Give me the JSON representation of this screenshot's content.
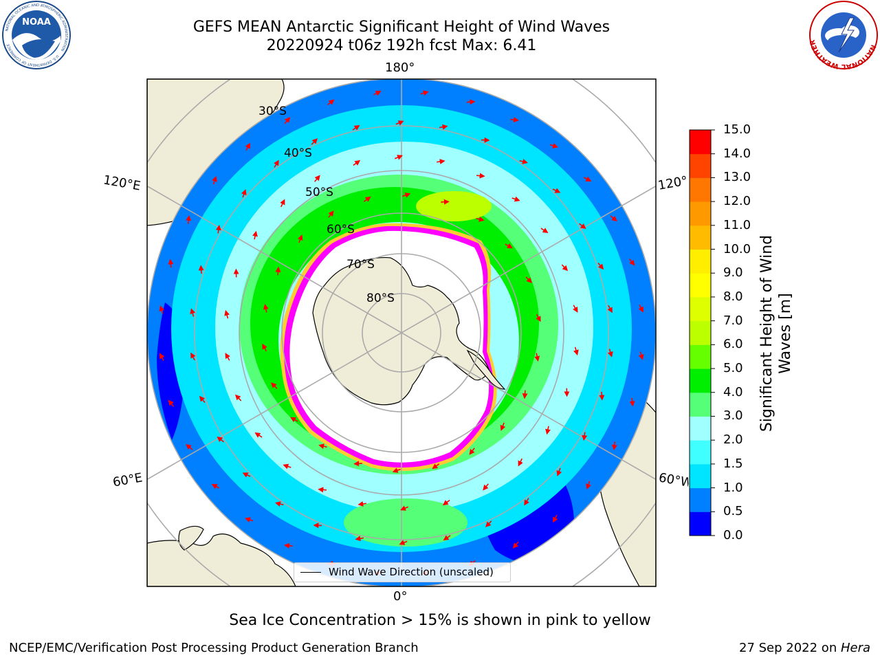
{
  "header": {
    "title_line1": "GEFS MEAN Antarctic Significant Height of Wind Waves",
    "title_line2": "20220924 t06z 192h fcst   Max: 6.41"
  },
  "logos": {
    "noaa_text": "NOAA",
    "noaa_ring_text": "NATIONAL OCEANIC AND ATMOSPHERIC ADMINISTRATION",
    "noaa_ring_bottom": "U.S. DEPARTMENT OF COMMERCE",
    "nws_ring_text": "NATIONAL WEATHER SERVICE"
  },
  "map": {
    "longitude_labels": [
      "180°",
      "120°E",
      "120°",
      "60°E",
      "60°W",
      "0°"
    ],
    "latitude_labels": [
      "30°S",
      "40°S",
      "50°S",
      "60°S",
      "70°S",
      "80°S"
    ],
    "legend_label": "Wind Wave Direction (unscaled)",
    "colors": {
      "land": "#efedd8",
      "ice_ring_inner": "#ff00ff",
      "ice_ring_outer": "#ffcc33",
      "arrow": "#ff0000",
      "grid": "#aaaaaa"
    }
  },
  "colorbar": {
    "title": "Significant Height of Wind Waves [m]",
    "ticks": [
      "0.0",
      "0.5",
      "1.0",
      "1.5",
      "2.0",
      "3.0",
      "4.0",
      "5.0",
      "6.0",
      "7.0",
      "8.0",
      "9.0",
      "10.0",
      "11.0",
      "12.0",
      "13.0",
      "14.0",
      "15.0"
    ],
    "colors": [
      "#0000ff",
      "#0080ff",
      "#00e5ff",
      "#40ffff",
      "#a0ffff",
      "#55ff77",
      "#00ee00",
      "#66ff00",
      "#bbff00",
      "#ddff00",
      "#ffff00",
      "#ffee00",
      "#ffbb00",
      "#ff9900",
      "#ff7700",
      "#ff4400",
      "#ff0000"
    ]
  },
  "footer": {
    "note": "Sea Ice Concentration > 15% is shown in pink to yellow",
    "left": "NCEP/EMC/Verification Post Processing Product Generation Branch",
    "right_prefix": "27 Sep 2022 on ",
    "right_machine": "Hera"
  }
}
